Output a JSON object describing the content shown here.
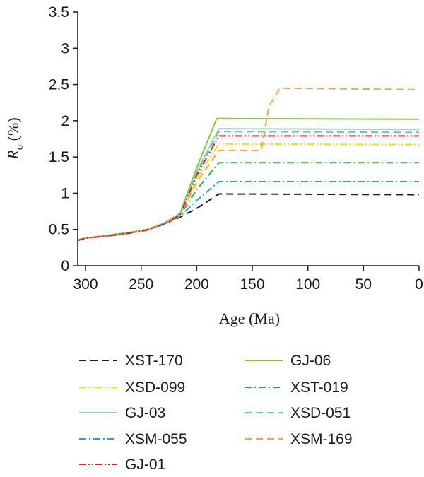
{
  "chart_data": {
    "type": "line",
    "title": "",
    "xlabel": "Age (Ma)",
    "ylabel": {
      "symbol": "R",
      "subscript": "o",
      "unit": " (%)"
    },
    "xlim": [
      307,
      0
    ],
    "ylim": [
      0,
      3.5
    ],
    "x_reversed": true,
    "xticks": [
      300,
      250,
      200,
      150,
      100,
      50,
      0
    ],
    "yticks": [
      0,
      0.5,
      1,
      1.5,
      2,
      2.5,
      3,
      3.5
    ],
    "ytick_labels": [
      "0",
      "0.5",
      "1",
      "1.5",
      "2",
      "2.5",
      "3",
      "3.5"
    ],
    "grid": false,
    "legend_position": "bottom",
    "series": [
      {
        "name": "XST-170",
        "color": "#1a1a1a",
        "dash": "dash",
        "points": [
          [
            307,
            0.35
          ],
          [
            300,
            0.38
          ],
          [
            280,
            0.41
          ],
          [
            260,
            0.45
          ],
          [
            245,
            0.49
          ],
          [
            230,
            0.57
          ],
          [
            215,
            0.67
          ],
          [
            200,
            0.79
          ],
          [
            180,
            0.99
          ],
          [
            0,
            0.98
          ]
        ]
      },
      {
        "name": "GJ-06",
        "color": "#8cc63f",
        "dash": "solid",
        "points": [
          [
            307,
            0.35
          ],
          [
            300,
            0.38
          ],
          [
            280,
            0.42
          ],
          [
            260,
            0.46
          ],
          [
            245,
            0.5
          ],
          [
            230,
            0.58
          ],
          [
            215,
            0.72
          ],
          [
            200,
            1.35
          ],
          [
            182,
            2.03
          ],
          [
            0,
            2.02
          ]
        ]
      },
      {
        "name": "XSD-099",
        "color": "#f2e000",
        "dash": "dashdotdot",
        "points": [
          [
            307,
            0.35
          ],
          [
            300,
            0.38
          ],
          [
            280,
            0.41
          ],
          [
            260,
            0.45
          ],
          [
            245,
            0.49
          ],
          [
            230,
            0.57
          ],
          [
            215,
            0.7
          ],
          [
            200,
            1.2
          ],
          [
            180,
            1.68
          ],
          [
            0,
            1.67
          ]
        ]
      },
      {
        "name": "XST-019",
        "color": "#2aaa4a",
        "dash": "dashdot",
        "points": [
          [
            307,
            0.35
          ],
          [
            300,
            0.38
          ],
          [
            280,
            0.41
          ],
          [
            260,
            0.45
          ],
          [
            245,
            0.49
          ],
          [
            230,
            0.57
          ],
          [
            215,
            0.69
          ],
          [
            200,
            1.05
          ],
          [
            180,
            1.42
          ],
          [
            0,
            1.42
          ]
        ]
      },
      {
        "name": "GJ-03",
        "color": "#9fd4b6",
        "dash": "solid",
        "points": [
          [
            307,
            0.35
          ],
          [
            300,
            0.38
          ],
          [
            280,
            0.41
          ],
          [
            260,
            0.45
          ],
          [
            245,
            0.49
          ],
          [
            230,
            0.57
          ],
          [
            215,
            0.71
          ],
          [
            200,
            1.3
          ],
          [
            180,
            1.89
          ],
          [
            0,
            1.88
          ]
        ]
      },
      {
        "name": "XSD-051",
        "color": "#5bc8d6",
        "dash": "dash",
        "points": [
          [
            307,
            0.35
          ],
          [
            300,
            0.38
          ],
          [
            280,
            0.41
          ],
          [
            260,
            0.45
          ],
          [
            245,
            0.49
          ],
          [
            230,
            0.57
          ],
          [
            215,
            0.71
          ],
          [
            200,
            1.28
          ],
          [
            180,
            1.85
          ],
          [
            0,
            1.84
          ]
        ]
      },
      {
        "name": "XSM-055",
        "color": "#29a0d8",
        "dash": "dashdot",
        "points": [
          [
            307,
            0.35
          ],
          [
            300,
            0.38
          ],
          [
            280,
            0.41
          ],
          [
            260,
            0.45
          ],
          [
            245,
            0.49
          ],
          [
            230,
            0.57
          ],
          [
            215,
            0.68
          ],
          [
            200,
            0.9
          ],
          [
            180,
            1.16
          ],
          [
            0,
            1.16
          ]
        ]
      },
      {
        "name": "XSM-169",
        "color": "#f5a24a",
        "dash": "dash",
        "points": [
          [
            307,
            0.35
          ],
          [
            300,
            0.38
          ],
          [
            280,
            0.41
          ],
          [
            260,
            0.45
          ],
          [
            245,
            0.49
          ],
          [
            230,
            0.57
          ],
          [
            215,
            0.69
          ],
          [
            200,
            1.15
          ],
          [
            180,
            1.59
          ],
          [
            142,
            1.59
          ],
          [
            135,
            2.2
          ],
          [
            125,
            2.45
          ],
          [
            0,
            2.43
          ]
        ]
      },
      {
        "name": "GJ-01",
        "color": "#e02020",
        "dash": "dashdotdot",
        "points": [
          [
            307,
            0.35
          ],
          [
            300,
            0.38
          ],
          [
            280,
            0.41
          ],
          [
            260,
            0.45
          ],
          [
            245,
            0.49
          ],
          [
            230,
            0.57
          ],
          [
            215,
            0.7
          ],
          [
            200,
            1.25
          ],
          [
            180,
            1.79
          ],
          [
            0,
            1.79
          ]
        ]
      }
    ]
  }
}
